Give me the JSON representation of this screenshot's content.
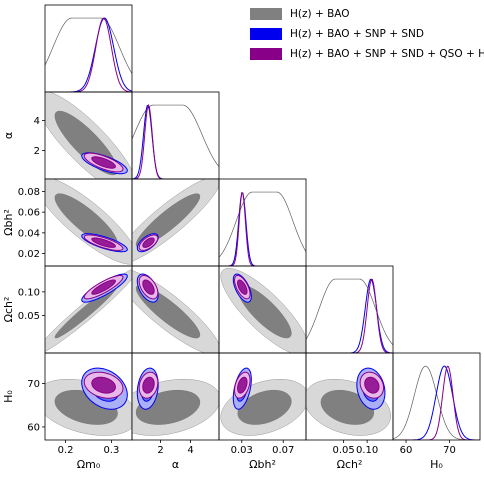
{
  "chart_data": {
    "type": "corner",
    "parameters": [
      {
        "key": "om",
        "label": "Ω",
        "sub": "m₀",
        "ticks": [
          0.2,
          0.3
        ],
        "lim": [
          0.155,
          0.345
        ]
      },
      {
        "key": "alpha",
        "label": "α",
        "sub": "",
        "ticks": [
          2,
          4
        ],
        "lim": [
          0.1,
          5.9
        ]
      },
      {
        "key": "obh2",
        "label": "Ω",
        "sub": "b",
        "sup_suffix": "h²",
        "ticks": [
          0.03,
          0.07
        ],
        "lim": [
          0.008,
          0.092
        ]
      },
      {
        "key": "och2",
        "label": "Ω",
        "sub": "c",
        "sup_suffix": "h²",
        "ticks": [
          0.05,
          0.1
        ],
        "lim": [
          -0.03,
          0.155
        ]
      },
      {
        "key": "h0",
        "label": "H",
        "sub": "0",
        "ticks": [
          60,
          70
        ],
        "lim": [
          57,
          77
        ]
      }
    ],
    "tick_labels": {
      "om": [
        "0.2",
        "0.3"
      ],
      "alpha": [
        "2",
        "4"
      ],
      "obh2": [
        "0.03",
        "0.07"
      ],
      "och2": [
        "0.05",
        "0.10"
      ],
      "h0": [
        "60",
        "70"
      ],
      "alpha_y": [
        "2",
        "4"
      ],
      "obh2_y": [
        "0.02",
        "0.04",
        "0.06",
        "0.08"
      ],
      "och2_y": [
        "0.05",
        "0.10"
      ],
      "h0_y": [
        "60",
        "70"
      ]
    },
    "axis_labels": {
      "om": "Ωm₀",
      "alpha": "α",
      "obh2": "Ωbh²",
      "och2": "Ωch²",
      "h0": "H₀"
    },
    "series": [
      {
        "name": "H(z) + BAO",
        "color": "#808080",
        "fill_outer": "#d8d8d8",
        "fill_inner": "#808080",
        "line": "#606060",
        "mean": {
          "om": 0.245,
          "alpha": 2.5,
          "obh2": 0.052,
          "och2": 0.058,
          "h0": 64.5
        },
        "sigma": {
          "om": 0.045,
          "alpha": 1.4,
          "obh2": 0.017,
          "och2": 0.037,
          "h0": 2.6
        },
        "rho": {
          "om-alpha": -0.85,
          "om-obh2": -0.85,
          "om-och2": 0.97,
          "om-h0": -0.35,
          "alpha-obh2": 0.9,
          "alpha-och2": -0.88,
          "alpha-h0": 0.3,
          "obh2-och2": -0.82,
          "obh2-h0": 0.35,
          "och2-h0": -0.3
        }
      },
      {
        "name": "H(z) + BAO + SNP + SND",
        "color": "#0000ee",
        "fill_outer": "#aab0f8",
        "fill_inner": "#5060f0",
        "line": "#0000ee",
        "mean": {
          "om": 0.285,
          "alpha": 1.15,
          "obh2": 0.0305,
          "och2": 0.108,
          "h0": 68.8
        },
        "sigma": {
          "om": 0.02,
          "alpha": 0.28,
          "obh2": 0.0035,
          "och2": 0.012,
          "h0": 1.9
        },
        "rho": {
          "om-alpha": -0.7,
          "om-obh2": -0.75,
          "om-och2": 0.85,
          "om-h0": -0.3,
          "alpha-obh2": 0.6,
          "alpha-och2": -0.5,
          "alpha-h0": 0.2,
          "obh2-och2": -0.6,
          "obh2-h0": 0.45,
          "och2-h0": -0.2
        }
      },
      {
        "name": "H(z) + BAO + SNP + SND + QSO + HIIG",
        "color": "#880088",
        "fill_outer": "#e8b8e8",
        "fill_inner": "#880088",
        "line": "#880088",
        "mean": {
          "om": 0.283,
          "alpha": 1.2,
          "obh2": 0.0305,
          "och2": 0.11,
          "h0": 69.6
        },
        "sigma": {
          "om": 0.017,
          "alpha": 0.25,
          "obh2": 0.003,
          "och2": 0.01,
          "h0": 1.2
        },
        "rho": {
          "om-alpha": -0.7,
          "om-obh2": -0.75,
          "om-och2": 0.85,
          "om-h0": -0.25,
          "alpha-obh2": 0.6,
          "alpha-och2": -0.5,
          "alpha-h0": 0.2,
          "obh2-och2": -0.6,
          "obh2-h0": 0.4,
          "och2-h0": -0.2
        }
      }
    ],
    "legend_placement": "top-right",
    "grid": false
  }
}
